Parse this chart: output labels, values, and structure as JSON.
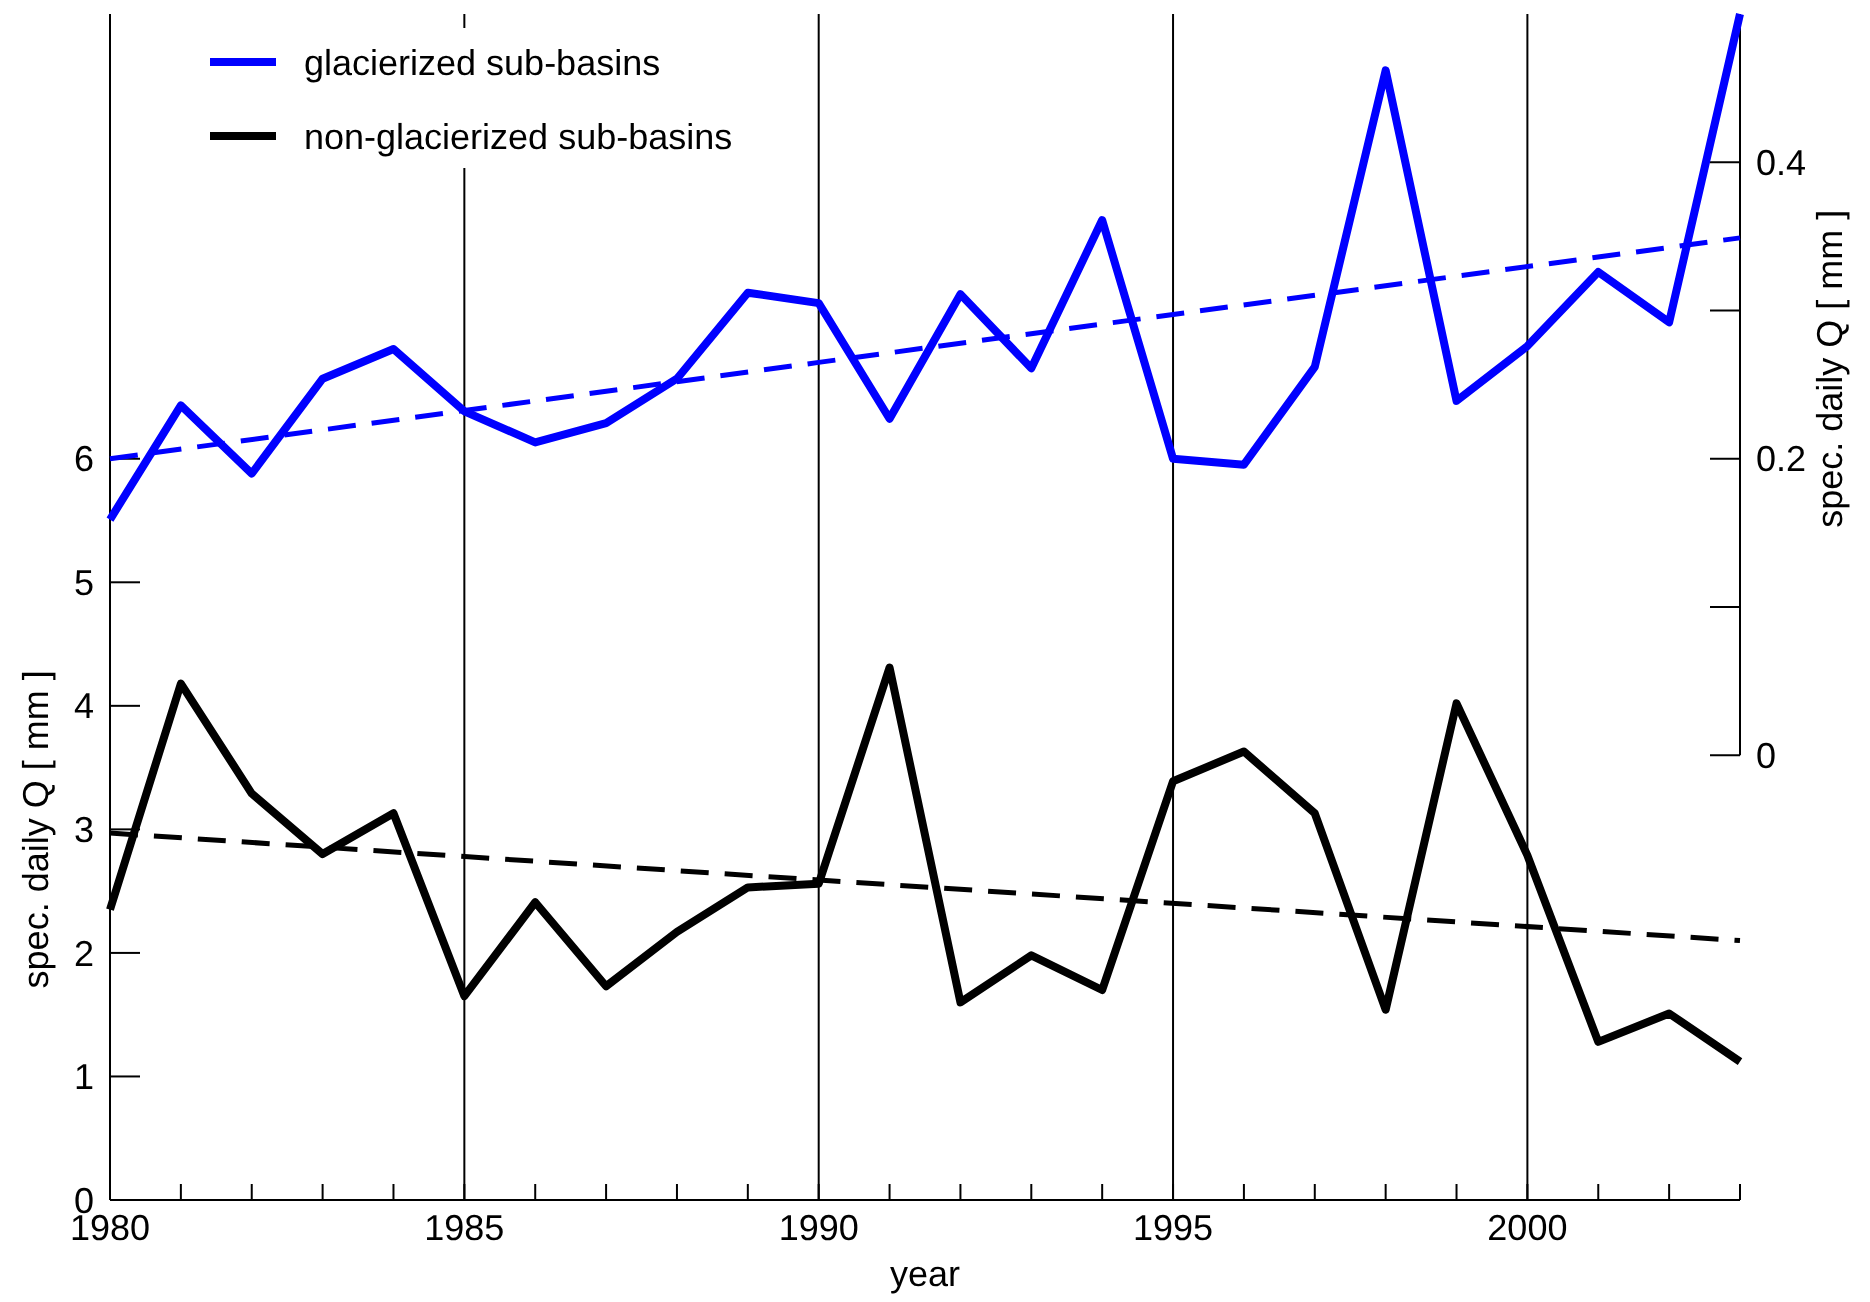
{
  "chart_data": {
    "type": "line",
    "xlabel": "year",
    "ylabel": "spec. daily Q  [ mm ]",
    "y2label": "spec. daily Q  [ mm ]",
    "x": [
      1980,
      1981,
      1982,
      1983,
      1984,
      1985,
      1986,
      1987,
      1988,
      1989,
      1990,
      1991,
      1992,
      1993,
      1994,
      1995,
      1996,
      1997,
      1998,
      1999,
      2000,
      2001,
      2002,
      2003
    ],
    "series": [
      {
        "name": "glacierized sub-basins",
        "color": "#0000ff",
        "axis": "y2",
        "values": [
          0.159,
          0.236,
          0.19,
          0.254,
          0.274,
          0.232,
          0.211,
          0.224,
          0.254,
          0.312,
          0.305,
          0.227,
          0.311,
          0.261,
          0.361,
          0.2,
          0.196,
          0.262,
          0.462,
          0.239,
          0.276,
          0.326,
          0.292,
          0.5
        ]
      },
      {
        "name": "non-glacierized sub-basins",
        "color": "#000000",
        "values": [
          2.35,
          4.18,
          3.29,
          2.8,
          3.13,
          1.65,
          2.41,
          1.73,
          2.17,
          2.53,
          2.56,
          4.31,
          1.6,
          1.98,
          1.7,
          3.39,
          3.63,
          3.13,
          1.54,
          4.02,
          2.79,
          1.28,
          1.51,
          1.12
        ]
      },
      {
        "type": "line",
        "color": "#0000ff",
        "axis": "y2",
        "line_style": "dashed",
        "x": [
          1980,
          1990,
          2003
        ],
        "values": [
          0.2,
          0.265,
          0.349
        ]
      },
      {
        "type": "line",
        "color": "#000000",
        "line_style": "dashed",
        "x": [
          1980,
          1990,
          2003
        ],
        "values": [
          2.97,
          2.59,
          2.1
        ]
      }
    ],
    "xlim": [
      1980,
      2003
    ],
    "xticks": [
      1980,
      {
        "value": 1981,
        "label": null
      },
      {
        "value": 1982,
        "label": null
      },
      {
        "value": 1983,
        "label": null
      },
      {
        "value": 1984,
        "label": null
      },
      1985,
      {
        "value": 1986,
        "label": null
      },
      {
        "value": 1987,
        "label": null
      },
      {
        "value": 1988,
        "label": null
      },
      {
        "value": 1989,
        "label": null
      },
      1990,
      {
        "value": 1991,
        "label": null
      },
      {
        "value": 1992,
        "label": null
      },
      {
        "value": 1993,
        "label": null
      },
      {
        "value": 1994,
        "label": null
      },
      1995,
      {
        "value": 1996,
        "label": null
      },
      {
        "value": 1997,
        "label": null
      },
      {
        "value": 1998,
        "label": null
      },
      {
        "value": 1999,
        "label": null
      },
      2000,
      {
        "value": 2001,
        "label": null
      },
      {
        "value": 2002,
        "label": null
      },
      {
        "value": 2003,
        "label": null
      }
    ],
    "ylim": [
      0,
      9.6
    ],
    "yticks": [
      0,
      1,
      2,
      3,
      4,
      5,
      6
    ],
    "y2lim": [
      -0.3,
      0.5
    ],
    "y2ticks": [
      0,
      {
        "value": 0.1,
        "label": null
      },
      0.2,
      {
        "value": 0.3,
        "label": null
      },
      0.4
    ],
    "grid": "x",
    "legend": "top left",
    "marker": "none",
    "line_style": "solid"
  }
}
